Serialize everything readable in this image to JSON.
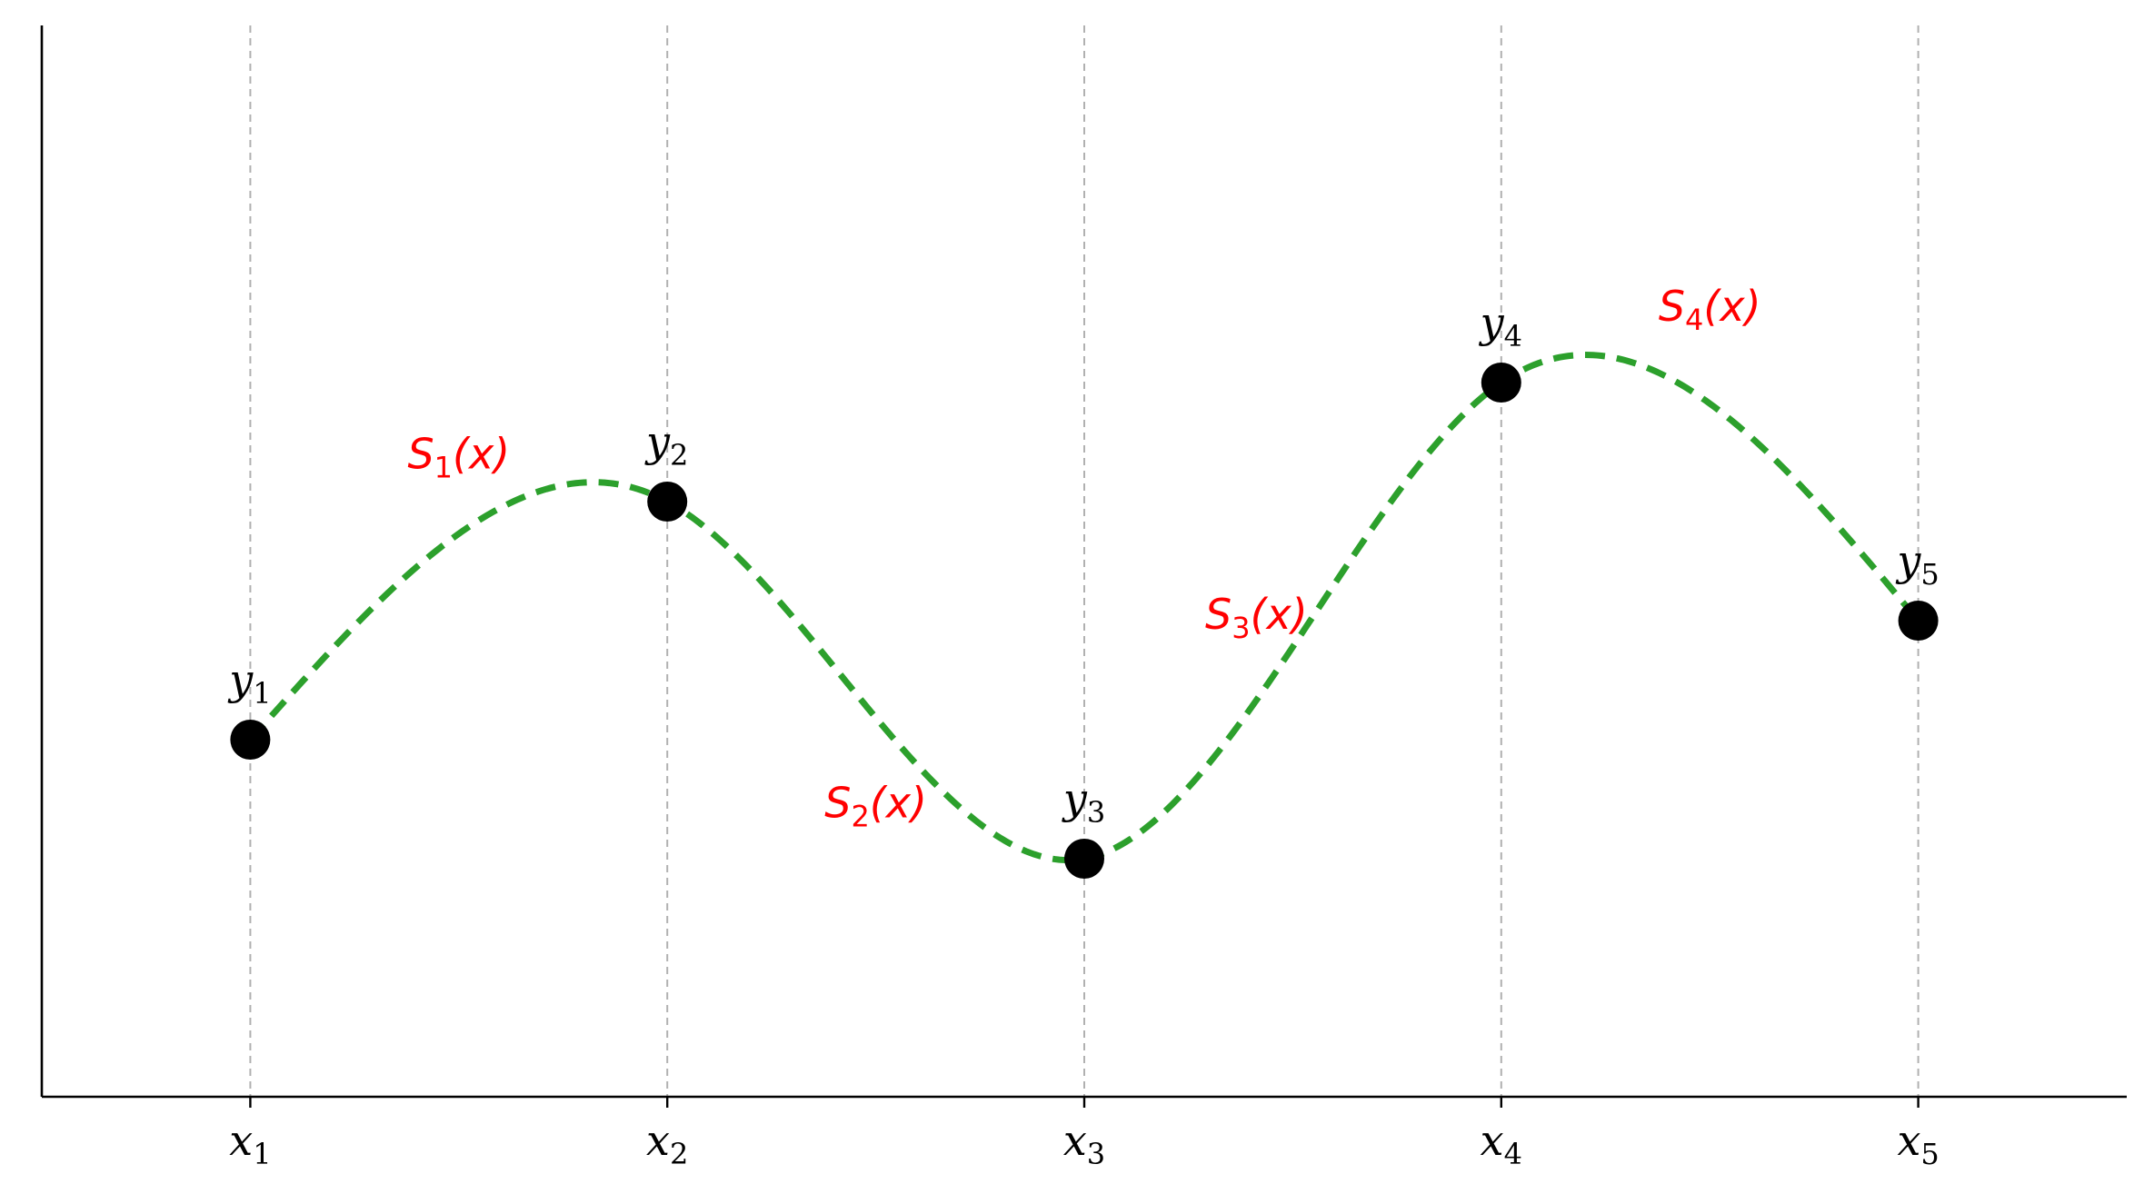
{
  "chart_data": {
    "type": "line",
    "title": "",
    "xlabel": "",
    "ylabel": "",
    "xlim": [
      0.5,
      5.5
    ],
    "ylim": [
      0.0,
      4.5
    ],
    "grid": {
      "vertical_dashed_at_knots": true,
      "horizontal": false
    },
    "knots": [
      {
        "x": 1,
        "y": 1.5,
        "x_label": "x",
        "x_sub": "1",
        "y_label": "y",
        "y_sub": "1"
      },
      {
        "x": 2,
        "y": 2.5,
        "x_label": "x",
        "x_sub": "2",
        "y_label": "y",
        "y_sub": "2"
      },
      {
        "x": 3,
        "y": 1.0,
        "x_label": "x",
        "x_sub": "3",
        "y_label": "y",
        "y_sub": "3"
      },
      {
        "x": 4,
        "y": 3.0,
        "x_label": "x",
        "x_sub": "4",
        "y_label": "y",
        "y_sub": "4"
      },
      {
        "x": 5,
        "y": 2.0,
        "x_label": "x",
        "x_sub": "5",
        "y_label": "y",
        "y_sub": "5"
      }
    ],
    "segments": [
      {
        "label": "S",
        "sub": "1",
        "arg": "(x)"
      },
      {
        "label": "S",
        "sub": "2",
        "arg": "(x)"
      },
      {
        "label": "S",
        "sub": "3",
        "arg": "(x)"
      },
      {
        "label": "S",
        "sub": "4",
        "arg": "(x)"
      }
    ],
    "series": [
      {
        "style": "dashed",
        "color": "#2ca02c",
        "interpolation": "natural cubic spline"
      }
    ],
    "colors": {
      "curve": "#2ca02c",
      "points": "#000000",
      "segment_labels": "#ff0000",
      "grid": "#b0b0b0"
    }
  }
}
